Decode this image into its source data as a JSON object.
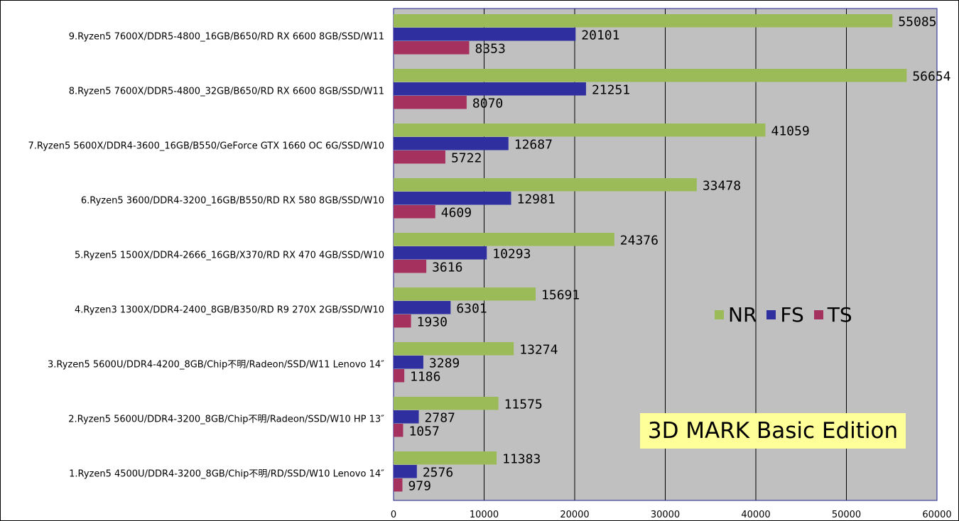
{
  "chart_data": {
    "type": "bar",
    "orientation": "horizontal",
    "title": "3D MARK Basic Edition",
    "categories": [
      "9.Ryzen5 7600X/DDR5-4800_16GB/B650/RD RX 6600 8GB/SSD/W11",
      "8.Ryzen5 7600X/DDR5-4800_32GB/B650/RD RX 6600 8GB/SSD/W11",
      "7.Ryzen5 5600X/DDR4-3600_16GB/B550/GeForce GTX 1660 OC 6G/SSD/W10",
      "6.Ryzen5 3600/DDR4-3200_16GB/B550/RD RX 580 8GB/SSD/W10",
      "5.Ryzen5 1500X/DDR4-2666_16GB/X370/RD RX 470 4GB/SSD/W10",
      "4.Ryzen3 1300X/DDR4-2400_8GB/B350/RD R9 270X 2GB/SSD/W10",
      "3.Ryzen5 5600U/DDR4-4200_8GB/Chip不明/Radeon/SSD/W11 Lenovo 14″",
      "2.Ryzen5 5600U/DDR4-3200_8GB/Chip不明/Radeon/SSD/W10 HP 13″",
      "1.Ryzen5 4500U/DDR4-3200_8GB/Chip不明/RD/SSD/W10 Lenovo 14″"
    ],
    "series": [
      {
        "name": "NR",
        "color": "#9bbb59",
        "values": [
          55085,
          56654,
          41059,
          33478,
          24376,
          15691,
          13274,
          11575,
          11383
        ]
      },
      {
        "name": "FS",
        "color": "#2f2f9f",
        "values": [
          20101,
          21251,
          12687,
          12981,
          10293,
          6301,
          3289,
          2787,
          2576
        ]
      },
      {
        "name": "TS",
        "color": "#a5325e",
        "values": [
          8353,
          8070,
          5722,
          4609,
          3616,
          1930,
          1186,
          1057,
          979
        ]
      }
    ],
    "xlim": [
      0,
      60000
    ],
    "xticks": [
      "0",
      "10000",
      "20000",
      "30000",
      "40000",
      "50000",
      "60000"
    ],
    "grid": true,
    "legend_position": "right-middle",
    "plot_background": "#c0c0c0"
  }
}
